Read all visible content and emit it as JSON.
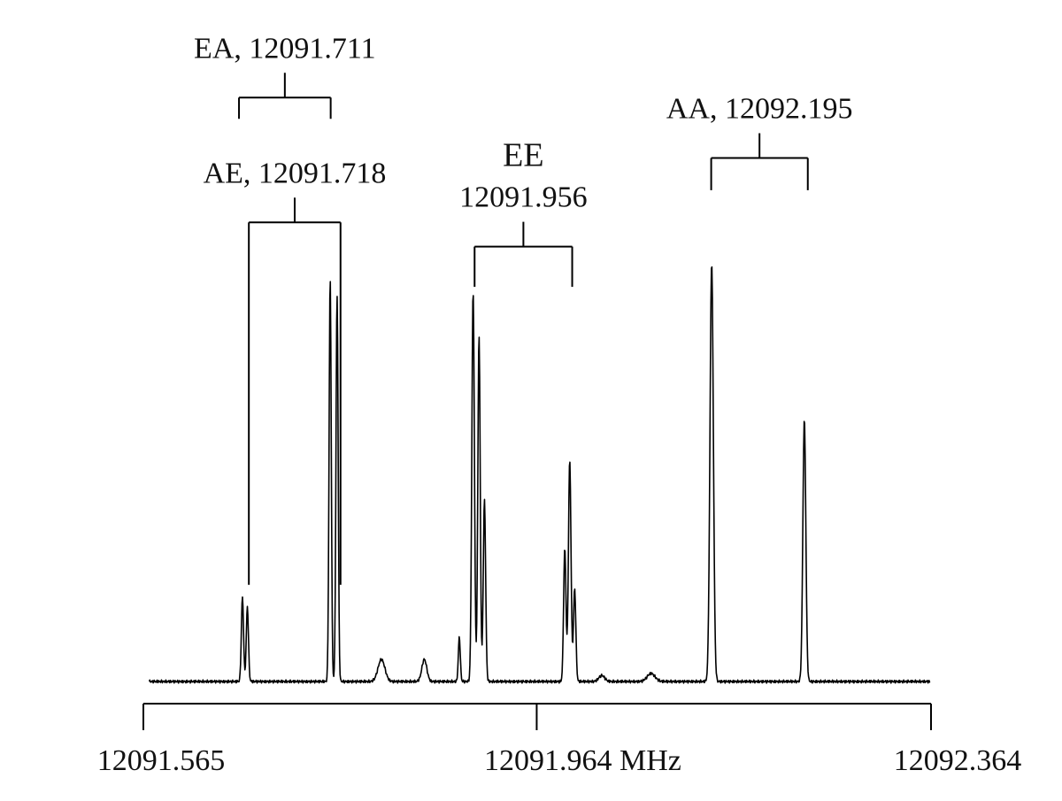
{
  "chart_data": {
    "type": "line",
    "title": "",
    "xlabel": "",
    "ylabel": "",
    "xlim": [
      12091.565,
      12092.364
    ],
    "ylim": [
      0,
      1.0
    ],
    "grid": false,
    "legend": "none",
    "axis": {
      "ticks": [
        {
          "value": 12091.565,
          "label": "12091.565"
        },
        {
          "value": 12091.964,
          "label": "12091.964 MHz"
        },
        {
          "value": 12092.364,
          "label": "12092.364"
        }
      ]
    },
    "series": [
      {
        "color": "#000000",
        "baseline": 0,
        "peaks": [
          {
            "x": 12091.6655,
            "height": 0.21,
            "width": 0.0011
          },
          {
            "x": 12091.6705,
            "height": 0.185,
            "width": 0.0011
          },
          {
            "x": 12091.7545,
            "height": 1.0,
            "width": 0.0011
          },
          {
            "x": 12091.7615,
            "height": 0.96,
            "width": 0.0011
          },
          {
            "x": 12091.8065,
            "height": 0.055,
            "width": 0.0035
          },
          {
            "x": 12091.85,
            "height": 0.055,
            "width": 0.0025
          },
          {
            "x": 12091.8855,
            "height": 0.11,
            "width": 0.001
          },
          {
            "x": 12091.8995,
            "height": 0.97,
            "width": 0.0013
          },
          {
            "x": 12091.9055,
            "height": 0.86,
            "width": 0.0012
          },
          {
            "x": 12091.911,
            "height": 0.45,
            "width": 0.0012
          },
          {
            "x": 12091.9925,
            "height": 0.33,
            "width": 0.0012
          },
          {
            "x": 12091.9975,
            "height": 0.55,
            "width": 0.0013
          },
          {
            "x": 12092.0025,
            "height": 0.23,
            "width": 0.0012
          },
          {
            "x": 12092.03,
            "height": 0.015,
            "width": 0.003
          },
          {
            "x": 12092.08,
            "height": 0.02,
            "width": 0.004
          },
          {
            "x": 12092.1415,
            "height": 1.04,
            "width": 0.0017
          },
          {
            "x": 12092.2355,
            "height": 0.65,
            "width": 0.0015
          }
        ]
      }
    ],
    "annotations": [
      {
        "label": "EA, 12091.711",
        "legs": [
          12091.662,
          12091.755
        ],
        "bracket_top": 1.45,
        "leg_bottom": 1.42
      },
      {
        "label": "AE, 12091.718",
        "legs": [
          12091.672,
          12091.765
        ],
        "bracket_top": 1.14,
        "leg_bottom": 0.24
      },
      {
        "label_lines": [
          "EE",
          "12091.956"
        ],
        "legs": [
          12091.901,
          12092.0
        ],
        "bracket_top": 1.08,
        "leg_bottom": 0.98
      },
      {
        "label": "AA, 12092.195",
        "legs": [
          12092.141,
          12092.239
        ],
        "bracket_top": 1.3,
        "leg_bottom": 1.22
      }
    ]
  }
}
